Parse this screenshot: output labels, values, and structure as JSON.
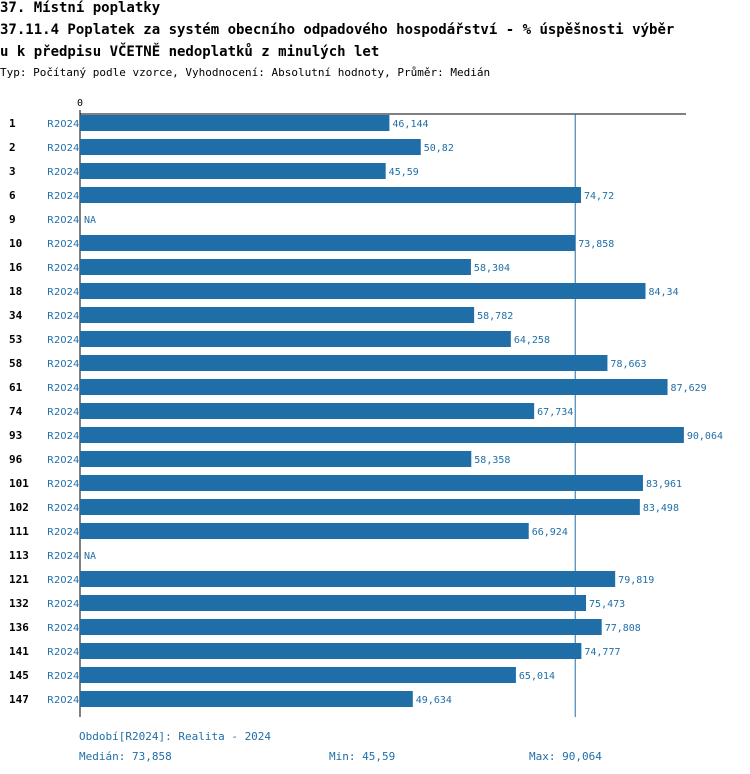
{
  "header": {
    "section": "37. Místní poplatky",
    "title_line1": "37.11.4 Poplatek za systém obecního odpadového hospodářství  - % úspěšnosti výběr",
    "title_line2": "u k předpisu VČETNĚ nedoplatků z minulých let",
    "subtitle": "Typ: Počítaný podle vzorce, Vyhodnocení: Absolutní hodnoty, Průměr: Medián"
  },
  "chart_data": {
    "type": "bar",
    "orientation": "horizontal",
    "axis_zero_label": "0",
    "xlim": [
      0,
      92
    ],
    "median_line": 73.858,
    "bar_color": "#1f6ea8",
    "rows": [
      {
        "id": "1",
        "period": "R2024",
        "value": 46.144,
        "label": "46,144"
      },
      {
        "id": "2",
        "period": "R2024",
        "value": 50.82,
        "label": "50,82"
      },
      {
        "id": "3",
        "period": "R2024",
        "value": 45.59,
        "label": "45,59"
      },
      {
        "id": "6",
        "period": "R2024",
        "value": 74.72,
        "label": "74,72"
      },
      {
        "id": "9",
        "period": "R2024",
        "value": null,
        "label": "NA"
      },
      {
        "id": "10",
        "period": "R2024",
        "value": 73.858,
        "label": "73,858"
      },
      {
        "id": "16",
        "period": "R2024",
        "value": 58.304,
        "label": "58,304"
      },
      {
        "id": "18",
        "period": "R2024",
        "value": 84.34,
        "label": "84,34"
      },
      {
        "id": "34",
        "period": "R2024",
        "value": 58.782,
        "label": "58,782"
      },
      {
        "id": "53",
        "period": "R2024",
        "value": 64.258,
        "label": "64,258"
      },
      {
        "id": "58",
        "period": "R2024",
        "value": 78.663,
        "label": "78,663"
      },
      {
        "id": "61",
        "period": "R2024",
        "value": 87.629,
        "label": "87,629"
      },
      {
        "id": "74",
        "period": "R2024",
        "value": 67.734,
        "label": "67,734"
      },
      {
        "id": "93",
        "period": "R2024",
        "value": 90.064,
        "label": "90,064"
      },
      {
        "id": "96",
        "period": "R2024",
        "value": 58.358,
        "label": "58,358"
      },
      {
        "id": "101",
        "period": "R2024",
        "value": 83.961,
        "label": "83,961"
      },
      {
        "id": "102",
        "period": "R2024",
        "value": 83.498,
        "label": "83,498"
      },
      {
        "id": "111",
        "period": "R2024",
        "value": 66.924,
        "label": "66,924"
      },
      {
        "id": "113",
        "period": "R2024",
        "value": null,
        "label": "NA"
      },
      {
        "id": "121",
        "period": "R2024",
        "value": 79.819,
        "label": "79,819"
      },
      {
        "id": "132",
        "period": "R2024",
        "value": 75.473,
        "label": "75,473"
      },
      {
        "id": "136",
        "period": "R2024",
        "value": 77.808,
        "label": "77,808"
      },
      {
        "id": "141",
        "period": "R2024",
        "value": 74.777,
        "label": "74,777"
      },
      {
        "id": "145",
        "period": "R2024",
        "value": 65.014,
        "label": "65,014"
      },
      {
        "id": "147",
        "period": "R2024",
        "value": 49.634,
        "label": "49,634"
      }
    ]
  },
  "footer": {
    "period_legend": "Období[R2024]: Realita - 2024",
    "median": "Medián: 73,858",
    "min": "Min: 45,59",
    "max": "Max: 90,064"
  }
}
